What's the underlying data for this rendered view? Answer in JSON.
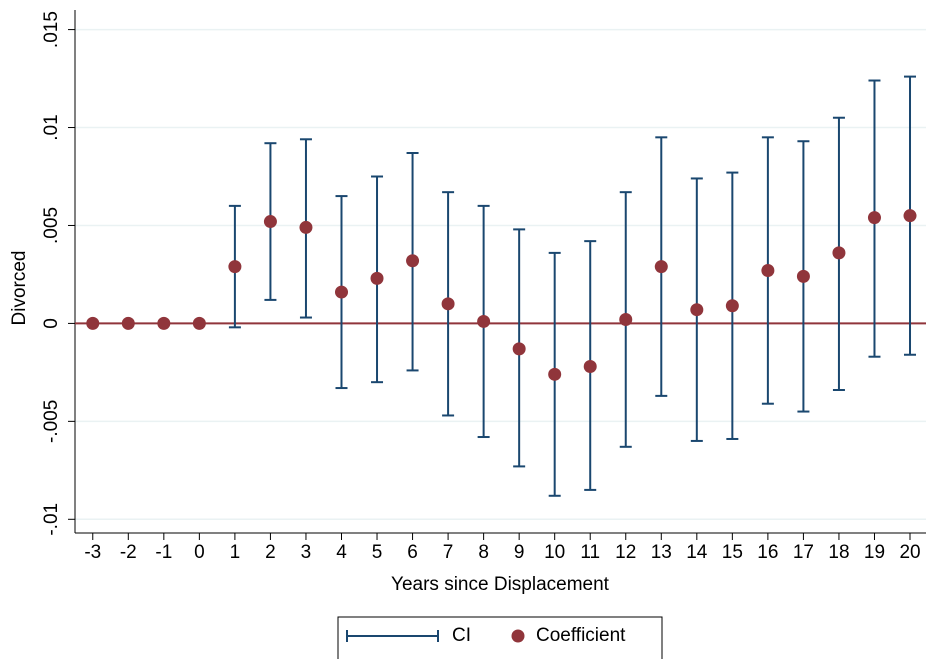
{
  "chart_data": {
    "type": "errorbar",
    "x_label": "Years since Displacement",
    "y_label": "Divorced",
    "x": [
      -3,
      -2,
      -1,
      0,
      1,
      2,
      3,
      4,
      5,
      6,
      7,
      8,
      9,
      10,
      11,
      12,
      13,
      14,
      15,
      16,
      17,
      18,
      19,
      20
    ],
    "series": [
      {
        "name": "CI",
        "color": "#1a476f",
        "upper": [
          null,
          null,
          null,
          null,
          0.006,
          0.0092,
          0.0094,
          0.0065,
          0.0075,
          0.0087,
          0.0067,
          0.006,
          0.0048,
          0.0036,
          0.0042,
          0.0067,
          0.0095,
          0.0074,
          0.0077,
          0.0095,
          0.0093,
          0.0105,
          0.0124,
          0.0126
        ],
        "lower": [
          null,
          null,
          null,
          null,
          -0.0002,
          0.0012,
          0.0003,
          -0.0033,
          -0.003,
          -0.0024,
          -0.0047,
          -0.0058,
          -0.0073,
          -0.0088,
          -0.0085,
          -0.0063,
          -0.0037,
          -0.006,
          -0.0059,
          -0.0041,
          -0.0045,
          -0.0034,
          -0.0017,
          -0.0016
        ]
      },
      {
        "name": "Coefficient",
        "color": "#90353b",
        "values": [
          0,
          0,
          0,
          0,
          0.0029,
          0.0052,
          0.0049,
          0.0016,
          0.0023,
          0.0032,
          0.001,
          0.0001,
          -0.0013,
          -0.0026,
          -0.0022,
          0.0002,
          0.0029,
          0.0007,
          0.0009,
          0.0027,
          0.0024,
          0.0036,
          0.0054,
          0.0055
        ]
      }
    ],
    "reference_line": 0,
    "reference_color": "#90353b",
    "xlim": [
      -3.5,
      20.45
    ],
    "xticks": [
      -3,
      -2,
      -1,
      0,
      1,
      2,
      3,
      4,
      5,
      6,
      7,
      8,
      9,
      10,
      11,
      12,
      13,
      14,
      15,
      16,
      17,
      18,
      19,
      20
    ],
    "ylim": [
      -0.0107,
      0.016
    ],
    "yticks": [
      {
        "value": -0.01,
        "label": "-.01"
      },
      {
        "value": -0.005,
        "label": "-.005"
      },
      0,
      {
        "value": 0.005,
        "label": ".005"
      },
      {
        "value": 0.01,
        "label": ".01"
      },
      {
        "value": 0.015,
        "label": ".015"
      }
    ],
    "grid": true
  }
}
